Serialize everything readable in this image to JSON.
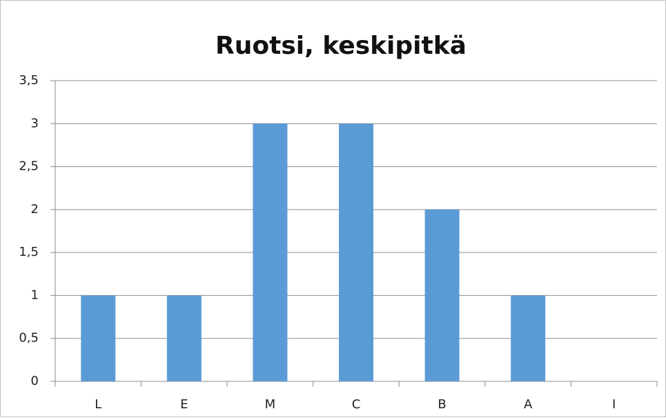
{
  "chart_data": {
    "type": "bar",
    "title": "Ruotsi, keskipitkä",
    "categories": [
      "L",
      "E",
      "M",
      "C",
      "B",
      "A",
      "I"
    ],
    "values": [
      1,
      1,
      3,
      3,
      2,
      1,
      0
    ],
    "color": "#5b9bd5",
    "ylim": [
      0,
      3.5
    ],
    "yticks": [
      0,
      {
        "value": 0.5,
        "label": "0,5"
      },
      1,
      {
        "value": 1.5,
        "label": "1,5"
      },
      2,
      {
        "value": 2.5,
        "label": "2,5"
      },
      3,
      {
        "value": 3.5,
        "label": "3,5"
      }
    ],
    "grid": true
  }
}
